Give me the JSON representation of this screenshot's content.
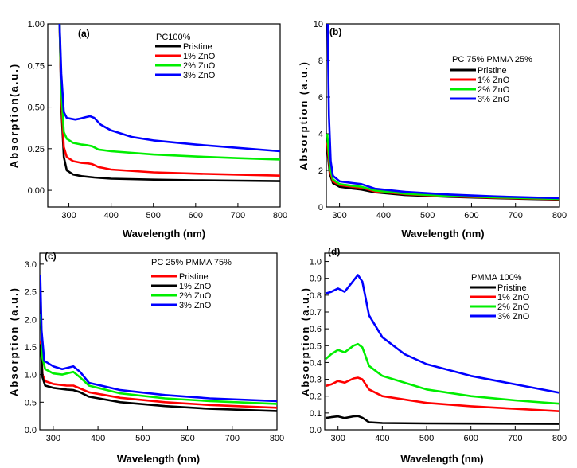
{
  "chart_data": [
    {
      "type": "line",
      "panel_label": "(a)",
      "legend_title": "PC100%",
      "xlabel": "Wavelength (nm)",
      "ylabel": "Absorption(a.u.)",
      "xlim": [
        250,
        800
      ],
      "ylim": [
        -0.1,
        1.0
      ],
      "xticks": [
        300,
        400,
        500,
        600,
        700,
        800
      ],
      "yticks": [
        0.0,
        0.25,
        0.5,
        0.75,
        1.0
      ],
      "ytick_labels": [
        "0.00",
        "0.25",
        "0.50",
        "0.75",
        "1.00"
      ],
      "xtick_labels": [
        "300",
        "400",
        "500",
        "600",
        "700",
        "800"
      ],
      "series": [
        {
          "name": "Pristine",
          "color": "#000000",
          "points": [
            [
              278,
              1.0
            ],
            [
              282,
              0.5
            ],
            [
              288,
              0.2
            ],
            [
              295,
              0.12
            ],
            [
              310,
              0.095
            ],
            [
              330,
              0.085
            ],
            [
              360,
              0.077
            ],
            [
              400,
              0.07
            ],
            [
              500,
              0.064
            ],
            [
              600,
              0.06
            ],
            [
              700,
              0.058
            ],
            [
              800,
              0.055
            ]
          ]
        },
        {
          "name": "1% ZnO",
          "color": "#ff0000",
          "points": [
            [
              278,
              1.0
            ],
            [
              282,
              0.55
            ],
            [
              288,
              0.26
            ],
            [
              295,
              0.2
            ],
            [
              310,
              0.175
            ],
            [
              330,
              0.165
            ],
            [
              345,
              0.162
            ],
            [
              355,
              0.158
            ],
            [
              370,
              0.14
            ],
            [
              400,
              0.125
            ],
            [
              500,
              0.108
            ],
            [
              600,
              0.1
            ],
            [
              700,
              0.094
            ],
            [
              800,
              0.088
            ]
          ]
        },
        {
          "name": "2% ZnO",
          "color": "#00ee00",
          "points": [
            [
              278,
              1.0
            ],
            [
              282,
              0.6
            ],
            [
              288,
              0.35
            ],
            [
              295,
              0.31
            ],
            [
              310,
              0.285
            ],
            [
              330,
              0.275
            ],
            [
              345,
              0.27
            ],
            [
              355,
              0.265
            ],
            [
              370,
              0.245
            ],
            [
              400,
              0.235
            ],
            [
              500,
              0.215
            ],
            [
              600,
              0.203
            ],
            [
              700,
              0.193
            ],
            [
              800,
              0.185
            ]
          ]
        },
        {
          "name": "3% ZnO",
          "color": "#0000ff",
          "points": [
            [
              278,
              1.0
            ],
            [
              282,
              0.7
            ],
            [
              288,
              0.47
            ],
            [
              295,
              0.435
            ],
            [
              305,
              0.43
            ],
            [
              315,
              0.425
            ],
            [
              325,
              0.43
            ],
            [
              340,
              0.44
            ],
            [
              350,
              0.445
            ],
            [
              360,
              0.435
            ],
            [
              375,
              0.395
            ],
            [
              400,
              0.36
            ],
            [
              450,
              0.32
            ],
            [
              500,
              0.3
            ],
            [
              600,
              0.275
            ],
            [
              700,
              0.255
            ],
            [
              800,
              0.235
            ]
          ]
        }
      ]
    },
    {
      "type": "line",
      "panel_label": "(b)",
      "legend_title": "PC 75% PMMA 25%",
      "xlabel": "Wavelength (nm)",
      "ylabel": "Absorption (a.u.)",
      "xlim": [
        270,
        800
      ],
      "ylim": [
        0,
        10
      ],
      "xticks": [
        300,
        400,
        500,
        600,
        700,
        800
      ],
      "yticks": [
        0,
        2,
        4,
        6,
        8,
        10
      ],
      "ytick_labels": [
        "0",
        "2",
        "4",
        "6",
        "8",
        "10"
      ],
      "xtick_labels": [
        "300",
        "400",
        "500",
        "600",
        "700",
        "800"
      ],
      "series": [
        {
          "name": "Pristine",
          "color": "#000000",
          "points": [
            [
              272,
              3.2
            ],
            [
              278,
              1.8
            ],
            [
              285,
              1.3
            ],
            [
              300,
              1.1
            ],
            [
              330,
              1.0
            ],
            [
              350,
              0.95
            ],
            [
              380,
              0.8
            ],
            [
              450,
              0.65
            ],
            [
              550,
              0.55
            ],
            [
              650,
              0.48
            ],
            [
              800,
              0.4
            ]
          ]
        },
        {
          "name": "1% ZnO",
          "color": "#ff0000",
          "points": [
            [
              272,
              3.5
            ],
            [
              278,
              2.0
            ],
            [
              285,
              1.4
            ],
            [
              300,
              1.2
            ],
            [
              330,
              1.1
            ],
            [
              350,
              1.05
            ],
            [
              380,
              0.85
            ],
            [
              450,
              0.7
            ],
            [
              550,
              0.58
            ],
            [
              650,
              0.5
            ],
            [
              800,
              0.42
            ]
          ]
        },
        {
          "name": "2% ZnO",
          "color": "#00ee00",
          "points": [
            [
              272,
              4.0
            ],
            [
              278,
              2.2
            ],
            [
              285,
              1.5
            ],
            [
              300,
              1.25
            ],
            [
              330,
              1.15
            ],
            [
              350,
              1.1
            ],
            [
              380,
              0.9
            ],
            [
              450,
              0.72
            ],
            [
              550,
              0.6
            ],
            [
              650,
              0.52
            ],
            [
              800,
              0.44
            ]
          ]
        },
        {
          "name": "3% ZnO",
          "color": "#0000ff",
          "points": [
            [
              273,
              10
            ],
            [
              276,
              5.0
            ],
            [
              280,
              2.5
            ],
            [
              285,
              1.7
            ],
            [
              300,
              1.4
            ],
            [
              330,
              1.3
            ],
            [
              350,
              1.25
            ],
            [
              380,
              1.0
            ],
            [
              450,
              0.82
            ],
            [
              550,
              0.68
            ],
            [
              650,
              0.58
            ],
            [
              800,
              0.48
            ]
          ]
        }
      ]
    },
    {
      "type": "line",
      "panel_label": "(c)",
      "legend_title": "PC 25% PMMA 75%",
      "xlabel": "Wavelength (nm)",
      "ylabel": "Absorption (a.u.)",
      "xlim": [
        270,
        800
      ],
      "ylim": [
        0,
        3.2
      ],
      "xticks": [
        300,
        400,
        500,
        600,
        700,
        800
      ],
      "yticks": [
        0,
        0.5,
        1.0,
        1.5,
        2.0,
        2.5,
        3.0
      ],
      "ytick_labels": [
        "0.0",
        "0.5",
        "1.0",
        "1.5",
        "2.0",
        "2.5",
        "3.0"
      ],
      "xtick_labels": [
        "300",
        "400",
        "500",
        "600",
        "700",
        "800"
      ],
      "series": [
        {
          "name": "Pristine",
          "color": "#ff0000",
          "points": [
            [
              272,
              1.6
            ],
            [
              276,
              1.0
            ],
            [
              282,
              0.88
            ],
            [
              300,
              0.83
            ],
            [
              330,
              0.8
            ],
            [
              345,
              0.8
            ],
            [
              360,
              0.75
            ],
            [
              380,
              0.68
            ],
            [
              450,
              0.58
            ],
            [
              550,
              0.5
            ],
            [
              650,
              0.45
            ],
            [
              800,
              0.4
            ]
          ]
        },
        {
          "name": "1% ZnO",
          "color": "#000000",
          "points": [
            [
              272,
              1.55
            ],
            [
              276,
              0.95
            ],
            [
              282,
              0.8
            ],
            [
              300,
              0.76
            ],
            [
              330,
              0.73
            ],
            [
              345,
              0.72
            ],
            [
              360,
              0.68
            ],
            [
              380,
              0.6
            ],
            [
              450,
              0.5
            ],
            [
              550,
              0.43
            ],
            [
              650,
              0.38
            ],
            [
              800,
              0.34
            ]
          ]
        },
        {
          "name": "2% ZnO",
          "color": "#00ee00",
          "points": [
            [
              272,
              2.1
            ],
            [
              276,
              1.3
            ],
            [
              282,
              1.1
            ],
            [
              300,
              1.02
            ],
            [
              320,
              1.0
            ],
            [
              345,
              1.05
            ],
            [
              360,
              0.95
            ],
            [
              380,
              0.8
            ],
            [
              450,
              0.66
            ],
            [
              550,
              0.57
            ],
            [
              650,
              0.52
            ],
            [
              800,
              0.47
            ]
          ]
        },
        {
          "name": "3% ZnO",
          "color": "#0000ff",
          "points": [
            [
              271,
              2.8
            ],
            [
              274,
              1.8
            ],
            [
              280,
              1.25
            ],
            [
              300,
              1.15
            ],
            [
              320,
              1.1
            ],
            [
              345,
              1.15
            ],
            [
              360,
              1.05
            ],
            [
              380,
              0.85
            ],
            [
              450,
              0.72
            ],
            [
              550,
              0.63
            ],
            [
              650,
              0.57
            ],
            [
              800,
              0.52
            ]
          ]
        }
      ]
    },
    {
      "type": "line",
      "panel_label": "(d)",
      "legend_title": "PMMA 100%",
      "xlabel": "Wavelength (nm)",
      "ylabel": "Absorption (a.u.)",
      "xlim": [
        270,
        800
      ],
      "ylim": [
        0,
        1.05
      ],
      "xticks": [
        300,
        400,
        500,
        600,
        700,
        800
      ],
      "yticks": [
        0,
        0.1,
        0.2,
        0.3,
        0.4,
        0.5,
        0.6,
        0.7,
        0.8,
        0.9,
        1.0
      ],
      "ytick_labels": [
        "0.0",
        "0.1",
        "0.2",
        "0.3",
        "0.4",
        "0.5",
        "0.6",
        "0.7",
        "0.8",
        "0.9",
        "1.0"
      ],
      "xtick_labels": [
        "300",
        "400",
        "500",
        "600",
        "700",
        "800"
      ],
      "series": [
        {
          "name": "Pristine",
          "color": "#000000",
          "points": [
            [
              272,
              0.07
            ],
            [
              285,
              0.075
            ],
            [
              300,
              0.08
            ],
            [
              315,
              0.07
            ],
            [
              335,
              0.08
            ],
            [
              345,
              0.082
            ],
            [
              355,
              0.072
            ],
            [
              370,
              0.045
            ],
            [
              400,
              0.04
            ],
            [
              500,
              0.038
            ],
            [
              600,
              0.037
            ],
            [
              800,
              0.035
            ]
          ]
        },
        {
          "name": "1% ZnO",
          "color": "#ff0000",
          "points": [
            [
              272,
              0.26
            ],
            [
              285,
              0.27
            ],
            [
              300,
              0.29
            ],
            [
              315,
              0.28
            ],
            [
              335,
              0.305
            ],
            [
              345,
              0.31
            ],
            [
              355,
              0.3
            ],
            [
              370,
              0.24
            ],
            [
              400,
              0.2
            ],
            [
              500,
              0.16
            ],
            [
              600,
              0.14
            ],
            [
              700,
              0.125
            ],
            [
              800,
              0.11
            ]
          ]
        },
        {
          "name": "2% ZnO",
          "color": "#00ee00",
          "points": [
            [
              272,
              0.42
            ],
            [
              285,
              0.45
            ],
            [
              300,
              0.475
            ],
            [
              315,
              0.46
            ],
            [
              335,
              0.5
            ],
            [
              345,
              0.51
            ],
            [
              355,
              0.49
            ],
            [
              370,
              0.38
            ],
            [
              400,
              0.32
            ],
            [
              500,
              0.24
            ],
            [
              600,
              0.2
            ],
            [
              700,
              0.175
            ],
            [
              800,
              0.155
            ]
          ]
        },
        {
          "name": "3% ZnO",
          "color": "#0000ff",
          "points": [
            [
              272,
              0.81
            ],
            [
              285,
              0.82
            ],
            [
              300,
              0.84
            ],
            [
              315,
              0.82
            ],
            [
              330,
              0.87
            ],
            [
              345,
              0.92
            ],
            [
              355,
              0.88
            ],
            [
              370,
              0.68
            ],
            [
              400,
              0.55
            ],
            [
              450,
              0.45
            ],
            [
              500,
              0.39
            ],
            [
              600,
              0.32
            ],
            [
              700,
              0.27
            ],
            [
              800,
              0.22
            ]
          ]
        }
      ]
    }
  ]
}
